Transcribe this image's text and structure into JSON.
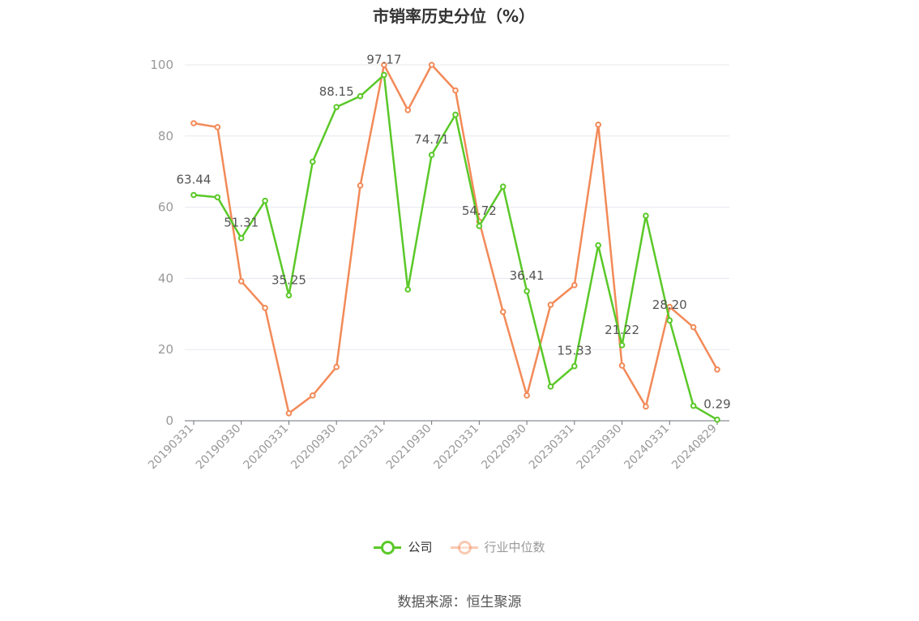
{
  "chart_data": {
    "type": "line",
    "title": "市销率历史分位（%）",
    "source": "数据来源：恒生聚源",
    "ylim": [
      0,
      100
    ],
    "yticks": [
      0,
      20,
      40,
      60,
      80,
      100
    ],
    "xtick_labels": [
      "20190331",
      "20190930",
      "20200331",
      "20200930",
      "20210331",
      "20210930",
      "20220331",
      "20220930",
      "20230331",
      "20230930",
      "20240331",
      "20240829"
    ],
    "x": [
      "20190331",
      "20190630",
      "20190930",
      "20191231",
      "20200331",
      "20200630",
      "20200930",
      "20201231",
      "20210331",
      "20210630",
      "20210930",
      "20211231",
      "20220331",
      "20220630",
      "20220930",
      "20221231",
      "20230331",
      "20230630",
      "20230930",
      "20231231",
      "20240331",
      "20240630",
      "20240829"
    ],
    "series": [
      {
        "name": "公司",
        "color": "#5ac828",
        "values": [
          63.44,
          62.8,
          51.31,
          61.8,
          35.25,
          72.8,
          88.15,
          91.2,
          97.17,
          36.9,
          74.71,
          86.0,
          54.72,
          65.8,
          36.41,
          9.6,
          15.33,
          49.3,
          21.22,
          57.6,
          28.2,
          4.2,
          0.29
        ],
        "labels": [
          "63.44",
          null,
          "51.31",
          null,
          "35.25",
          null,
          "88.15",
          null,
          "97.17",
          null,
          "74.71",
          null,
          "54.72",
          null,
          "36.41",
          null,
          "15.33",
          null,
          "21.22",
          null,
          "28.20",
          null,
          "0.29"
        ]
      },
      {
        "name": "行业中位数",
        "color": "#f28a58",
        "values": [
          83.6,
          82.5,
          39.2,
          31.7,
          2.1,
          7.1,
          15.1,
          66.1,
          100.0,
          87.3,
          100.0,
          92.8,
          56.0,
          30.6,
          7.1,
          32.6,
          38.1,
          83.2,
          15.5,
          4.0,
          32.0,
          26.3,
          14.4
        ]
      }
    ],
    "legend": {
      "position": "bottom"
    },
    "grid": true
  }
}
